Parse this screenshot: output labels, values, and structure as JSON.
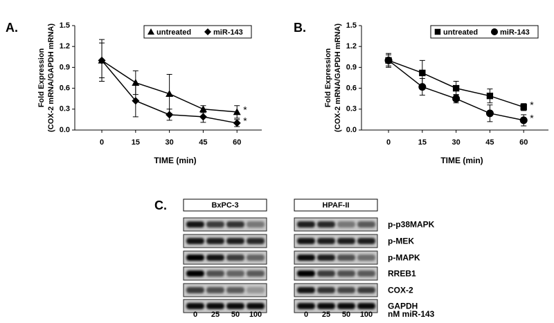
{
  "chart_data": [
    {
      "type": "line",
      "panel_label": "A.",
      "ylabel": [
        "Fold Expression",
        "(COX-2 mRNA/GAPDH mRNA)"
      ],
      "xlabel": "TIME (min)",
      "x": [
        0,
        15,
        30,
        45,
        60
      ],
      "xlim": [
        -12,
        71
      ],
      "xticks": [
        0,
        15,
        30,
        45,
        60
      ],
      "ylim": [
        0,
        1.5
      ],
      "yticks": [
        {
          "value": 0,
          "label": "0.0"
        },
        0.3,
        0.6,
        0.9,
        1.2,
        1.5
      ],
      "series": [
        {
          "name": "untreated",
          "color": "#000000",
          "marker": "triangle",
          "values": [
            1.0,
            0.68,
            0.52,
            0.3,
            0.26
          ],
          "errors": [
            0.3,
            0.17,
            0.28,
            0.05,
            0.09
          ],
          "annotation": "*"
        },
        {
          "name": "miR-143",
          "color": "#000000",
          "marker": "diamond",
          "values": [
            1.0,
            0.42,
            0.22,
            0.19,
            0.1
          ],
          "errors": [
            0.25,
            0.23,
            0.08,
            0.08,
            0.05
          ],
          "annotation": "*"
        }
      ]
    },
    {
      "type": "line",
      "panel_label": "B.",
      "ylabel": [
        "Fold Expression",
        "(COX-2 mRNA/GAPDH mRNA)"
      ],
      "xlabel": "TIME (min)",
      "x": [
        0,
        15,
        30,
        45,
        60
      ],
      "xlim": [
        -12,
        71
      ],
      "xticks": [
        0,
        15,
        30,
        45,
        60
      ],
      "ylim": [
        0,
        1.5
      ],
      "yticks": [
        {
          "value": 0,
          "label": "0.0"
        },
        0.3,
        0.6,
        0.9,
        1.2,
        1.5
      ],
      "series": [
        {
          "name": "untreated",
          "color": "#000000",
          "marker": "square",
          "values": [
            1.0,
            0.82,
            0.6,
            0.49,
            0.33
          ],
          "errors": [
            0.1,
            0.18,
            0.1,
            0.1,
            0.05
          ],
          "annotation": "*"
        },
        {
          "name": "miR-143",
          "color": "#000000",
          "marker": "circle",
          "values": [
            1.0,
            0.62,
            0.45,
            0.24,
            0.14
          ],
          "errors": [
            0.08,
            0.12,
            0.06,
            0.12,
            0.08
          ],
          "annotation": "*"
        }
      ]
    }
  ],
  "blot": {
    "panel_label": "C.",
    "cell_lines": [
      "BxPC-3",
      "HPAF-II"
    ],
    "proteins": [
      "p-p38MAPK",
      "p-MEK",
      "p-MAPK",
      "RREB1",
      "COX-2",
      "GAPDH"
    ],
    "doses": [
      0,
      25,
      50,
      100
    ],
    "dose_unit": "nM miR-143"
  }
}
